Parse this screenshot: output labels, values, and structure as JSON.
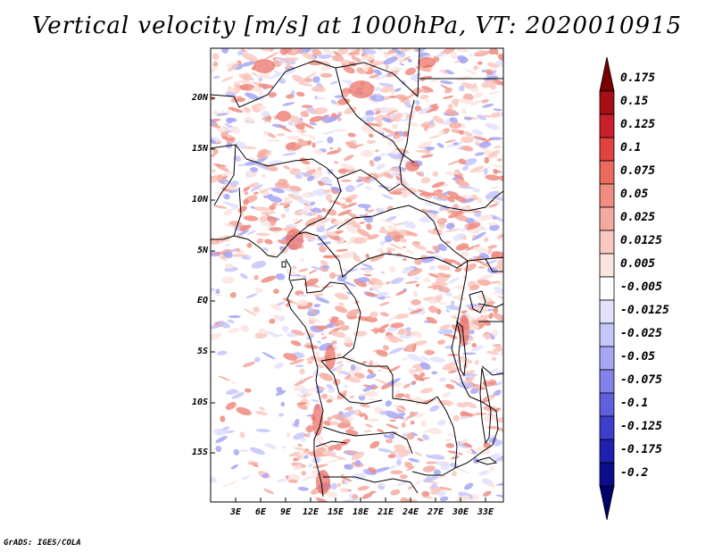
{
  "title": "Vertical velocity [m/s] at 1000hPa, VT: 2020010915",
  "footer": "GrADS: IGES/COLA",
  "axes": {
    "lat_labels": [
      "20N",
      "15N",
      "10N",
      "5N",
      "EQ",
      "5S",
      "10S",
      "15S"
    ],
    "lon_labels": [
      "3E",
      "6E",
      "9E",
      "12E",
      "15E",
      "18E",
      "21E",
      "24E",
      "27E",
      "30E",
      "33E"
    ]
  },
  "colorbar": {
    "labels": [
      "0.175",
      "0.15",
      "0.125",
      "0.1",
      "0.075",
      "0.05",
      "0.025",
      "0.0125",
      "0.005",
      "-0.005",
      "-0.0125",
      "-0.025",
      "-0.05",
      "-0.075",
      "-0.1",
      "-0.125",
      "-0.175",
      "-0.2"
    ],
    "colors": [
      "#7a0000",
      "#a50f15",
      "#c8202a",
      "#e0423e",
      "#ea6a5e",
      "#f08c80",
      "#f5aaa0",
      "#f9c8c0",
      "#fce4df",
      "#ffffff",
      "#e2e2ff",
      "#c6c6fb",
      "#a6a6f4",
      "#8282ea",
      "#6060dc",
      "#3e3ecc",
      "#2020b0",
      "#0c0c8c",
      "#00006a"
    ]
  },
  "colors": {
    "positive": "#f08c80",
    "negative": "#8282ea"
  }
}
